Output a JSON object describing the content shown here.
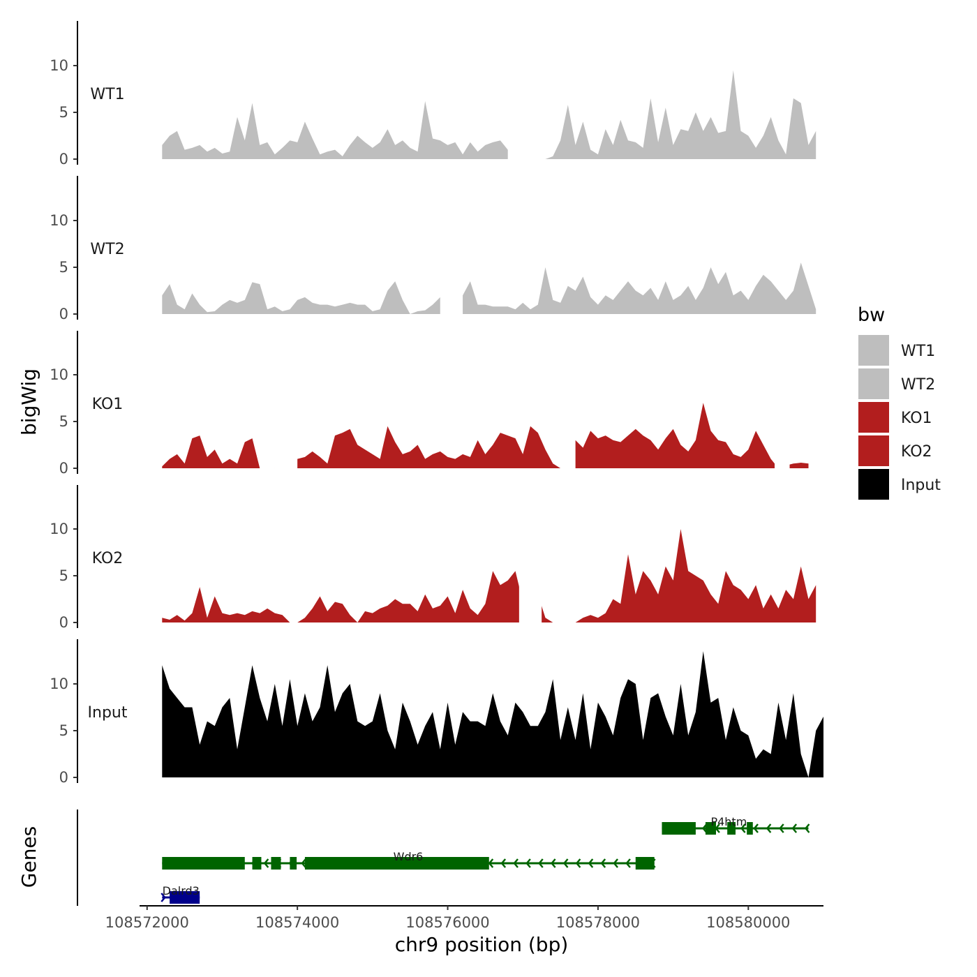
{
  "chart_data": {
    "type": "area",
    "region": {
      "chrom": "chr9",
      "start": 108572200,
      "end": 108580800
    },
    "y_title": "bigWig",
    "genes_title": "Genes",
    "x_title": "chr9 position (bp)",
    "xlim": [
      108571900,
      108581000
    ],
    "x_ticks": [
      108572000,
      108574000,
      108576000,
      108578000,
      108580000
    ],
    "x_tick_labels": [
      "108572000",
      "108574000",
      "108576000",
      "108578000",
      "108580000"
    ],
    "ylim": [
      0,
      14.5
    ],
    "y_ticks": [
      0,
      5,
      10
    ],
    "y_tick_labels": [
      "0",
      "5",
      "10"
    ],
    "legend": {
      "title": "bw",
      "entries": [
        {
          "label": "WT1",
          "color": "#bebebe"
        },
        {
          "label": "WT2",
          "color": "#bebebe"
        },
        {
          "label": "KO1",
          "color": "#b21e1e"
        },
        {
          "label": "KO2",
          "color": "#b21e1e"
        },
        {
          "label": "Input",
          "color": "#000000"
        }
      ]
    },
    "series": [
      {
        "name": "WT1",
        "color": "#bebebe",
        "x_start": 108572200,
        "step": 100,
        "values": [
          1.5,
          2.5,
          3,
          1,
          1.2,
          1.5,
          0.8,
          1.2,
          0.6,
          0.8,
          4.5,
          2,
          6,
          1.5,
          1.8,
          0.5,
          1.2,
          2,
          1.8,
          4,
          2.2,
          0.5,
          0.8,
          1,
          0.3,
          1.5,
          2.5,
          1.8,
          1.2,
          1.8,
          3.2,
          1.5,
          2,
          1.2,
          0.8,
          6.2,
          2.2,
          2,
          1.5,
          1.8,
          0.5,
          1.8,
          0.8,
          1.5,
          1.8,
          2,
          1,
          0.3,
          0,
          1,
          0,
          0,
          0.3,
          2,
          5.8,
          1.5,
          4,
          1,
          0.5,
          3.2,
          1.5,
          4.2,
          2,
          1.8,
          1.2,
          6.5,
          1.8,
          5.5,
          1.5,
          3.2,
          3,
          5,
          3,
          4.5,
          2.8,
          3,
          9.5,
          3,
          2.5,
          1.2,
          2.5,
          4.5,
          2,
          0.5,
          6.5,
          6,
          1.5,
          3
        ],
        "gaps": [
          [
            108576800,
            108577300
          ]
        ]
      },
      {
        "name": "WT2",
        "color": "#bebebe",
        "x_start": 108572200,
        "step": 100,
        "values": [
          2,
          3.2,
          1,
          0.5,
          2.2,
          1,
          0.2,
          0.3,
          1,
          1.5,
          1.2,
          1.5,
          3.4,
          3.2,
          0.5,
          0.8,
          0.3,
          0.5,
          1.5,
          1.8,
          1.2,
          1,
          1,
          0.8,
          1,
          1.2,
          1,
          1,
          0.3,
          0.5,
          2.5,
          3.5,
          1.5,
          0,
          0.3,
          0.4,
          1,
          1.8,
          1.5,
          3.8,
          2,
          3.5,
          1,
          1,
          0.8,
          0.8,
          0.8,
          0.5,
          1.2,
          0.5,
          1,
          5,
          1.5,
          1.2,
          3,
          2.5,
          4,
          1.8,
          1,
          2,
          1.5,
          2.5,
          3.5,
          2.5,
          2,
          2.8,
          1.5,
          3.5,
          1.5,
          2,
          3,
          1.5,
          2.8,
          5,
          3.2,
          4.5,
          2,
          2.5,
          1.5,
          3,
          4.2,
          3.5,
          2.5,
          1.5,
          2.5,
          5.5,
          3,
          0.5
        ],
        "gaps": [
          [
            108575900,
            108576200
          ]
        ]
      },
      {
        "name": "KO1",
        "color": "#b21e1e",
        "x_start": 108572200,
        "step": 100,
        "values": [
          0.2,
          1,
          1.5,
          0.5,
          3.2,
          3.5,
          1.2,
          2,
          0.5,
          1,
          0.5,
          2.8,
          3.2,
          0,
          0,
          0,
          0.6,
          1,
          1,
          1.2,
          1.8,
          1.2,
          0.5,
          3.5,
          3.8,
          4.2,
          2.5,
          2,
          1.5,
          1,
          4.5,
          2.8,
          1.5,
          1.8,
          2.5,
          1,
          1.5,
          1.8,
          1.2,
          1,
          1.5,
          1.2,
          3,
          1.5,
          2.5,
          3.8,
          3.5,
          3.2,
          1.5,
          4.5,
          3.8,
          2,
          0.5,
          0,
          0,
          3,
          2.2,
          4,
          3.2,
          3.5,
          3,
          2.8,
          3.5,
          4.2,
          3.5,
          3,
          2,
          3.2,
          4.2,
          2.5,
          1.8,
          3,
          7,
          4,
          3,
          2.8,
          1.5,
          1.2,
          2,
          4,
          2.5,
          1,
          0,
          0.3,
          0.5,
          0.6,
          0.5
        ],
        "gaps": [
          [
            108573700,
            108574000
          ],
          [
            108577550,
            108577700
          ],
          [
            108580350,
            108580550
          ]
        ]
      },
      {
        "name": "KO2",
        "color": "#b21e1e",
        "x_start": 108572200,
        "step": 100,
        "values": [
          0.5,
          0.3,
          0.8,
          0.2,
          1,
          3.8,
          0.5,
          2.8,
          1,
          0.8,
          1,
          0.8,
          1.2,
          1,
          1.5,
          1,
          0.8,
          0,
          0,
          0.5,
          1.5,
          2.8,
          1.2,
          2.2,
          2,
          0.8,
          0,
          1.2,
          1,
          1.5,
          1.8,
          2.5,
          2,
          2,
          1.2,
          3,
          1.5,
          1.8,
          2.8,
          1,
          3.5,
          1.5,
          0.8,
          2,
          5.5,
          4,
          4.5,
          5.5,
          2.2,
          1.5,
          3,
          0.5,
          0,
          0,
          0,
          0,
          0.5,
          0.8,
          0.5,
          1,
          2.5,
          2,
          7.3,
          3,
          5.5,
          4.5,
          3,
          6,
          4.5,
          10,
          5.5,
          5,
          4.5,
          3,
          2,
          5.5,
          4,
          3.5,
          2.5,
          4,
          1.5,
          3,
          1.5,
          3.5,
          2.5,
          6,
          2.5,
          4
        ],
        "gaps": [
          [
            108576950,
            108577250
          ]
        ]
      },
      {
        "name": "Input",
        "color": "#000000",
        "x_start": 108572200,
        "step": 100,
        "values": [
          12,
          9.5,
          8.5,
          7.5,
          7.5,
          3.5,
          6,
          5.5,
          7.5,
          8.5,
          3,
          7.5,
          12,
          8.5,
          6,
          10,
          5.5,
          10.5,
          5.5,
          9,
          6,
          7.5,
          12,
          7,
          9,
          10,
          6,
          5.5,
          6,
          9,
          5,
          3,
          8,
          6,
          3.5,
          5.5,
          7,
          3,
          8,
          3.5,
          7,
          6,
          6,
          5.5,
          9,
          6,
          4.5,
          8,
          7,
          5.5,
          5.5,
          7,
          10.5,
          4,
          7.5,
          4,
          9,
          3,
          8,
          6.5,
          4.5,
          8.5,
          10.5,
          10,
          4,
          8.5,
          9,
          6.5,
          4.5,
          10,
          4.5,
          7,
          13.5,
          8,
          8.5,
          4,
          7.5,
          5,
          4.5,
          2,
          3,
          2.5,
          8,
          4,
          9,
          2.5,
          0,
          5,
          6.5
        ],
        "gaps": []
      }
    ],
    "genes": [
      {
        "name": "Dalrd3",
        "color": "#00008b",
        "strand": "+",
        "row": 2,
        "start": 108572200,
        "end": 108572700,
        "exons": [
          [
            108572300,
            108572700
          ]
        ]
      },
      {
        "name": "Wdr6",
        "color": "#006400",
        "strand": "-",
        "row": 1,
        "start": 108572200,
        "end": 108578750,
        "exons": [
          [
            108572200,
            108573300
          ],
          [
            108573400,
            108573520
          ],
          [
            108573650,
            108573780
          ],
          [
            108573900,
            108573990
          ],
          [
            108574100,
            108576550
          ],
          [
            108578500,
            108578750
          ]
        ]
      },
      {
        "name": "P4htm",
        "color": "#006400",
        "strand": "-",
        "row": 0,
        "start": 108578850,
        "end": 108580800,
        "exons": [
          [
            108578850,
            108579300
          ],
          [
            108579430,
            108579570
          ],
          [
            108579720,
            108579830
          ],
          [
            108579980,
            108580060
          ]
        ]
      }
    ]
  }
}
